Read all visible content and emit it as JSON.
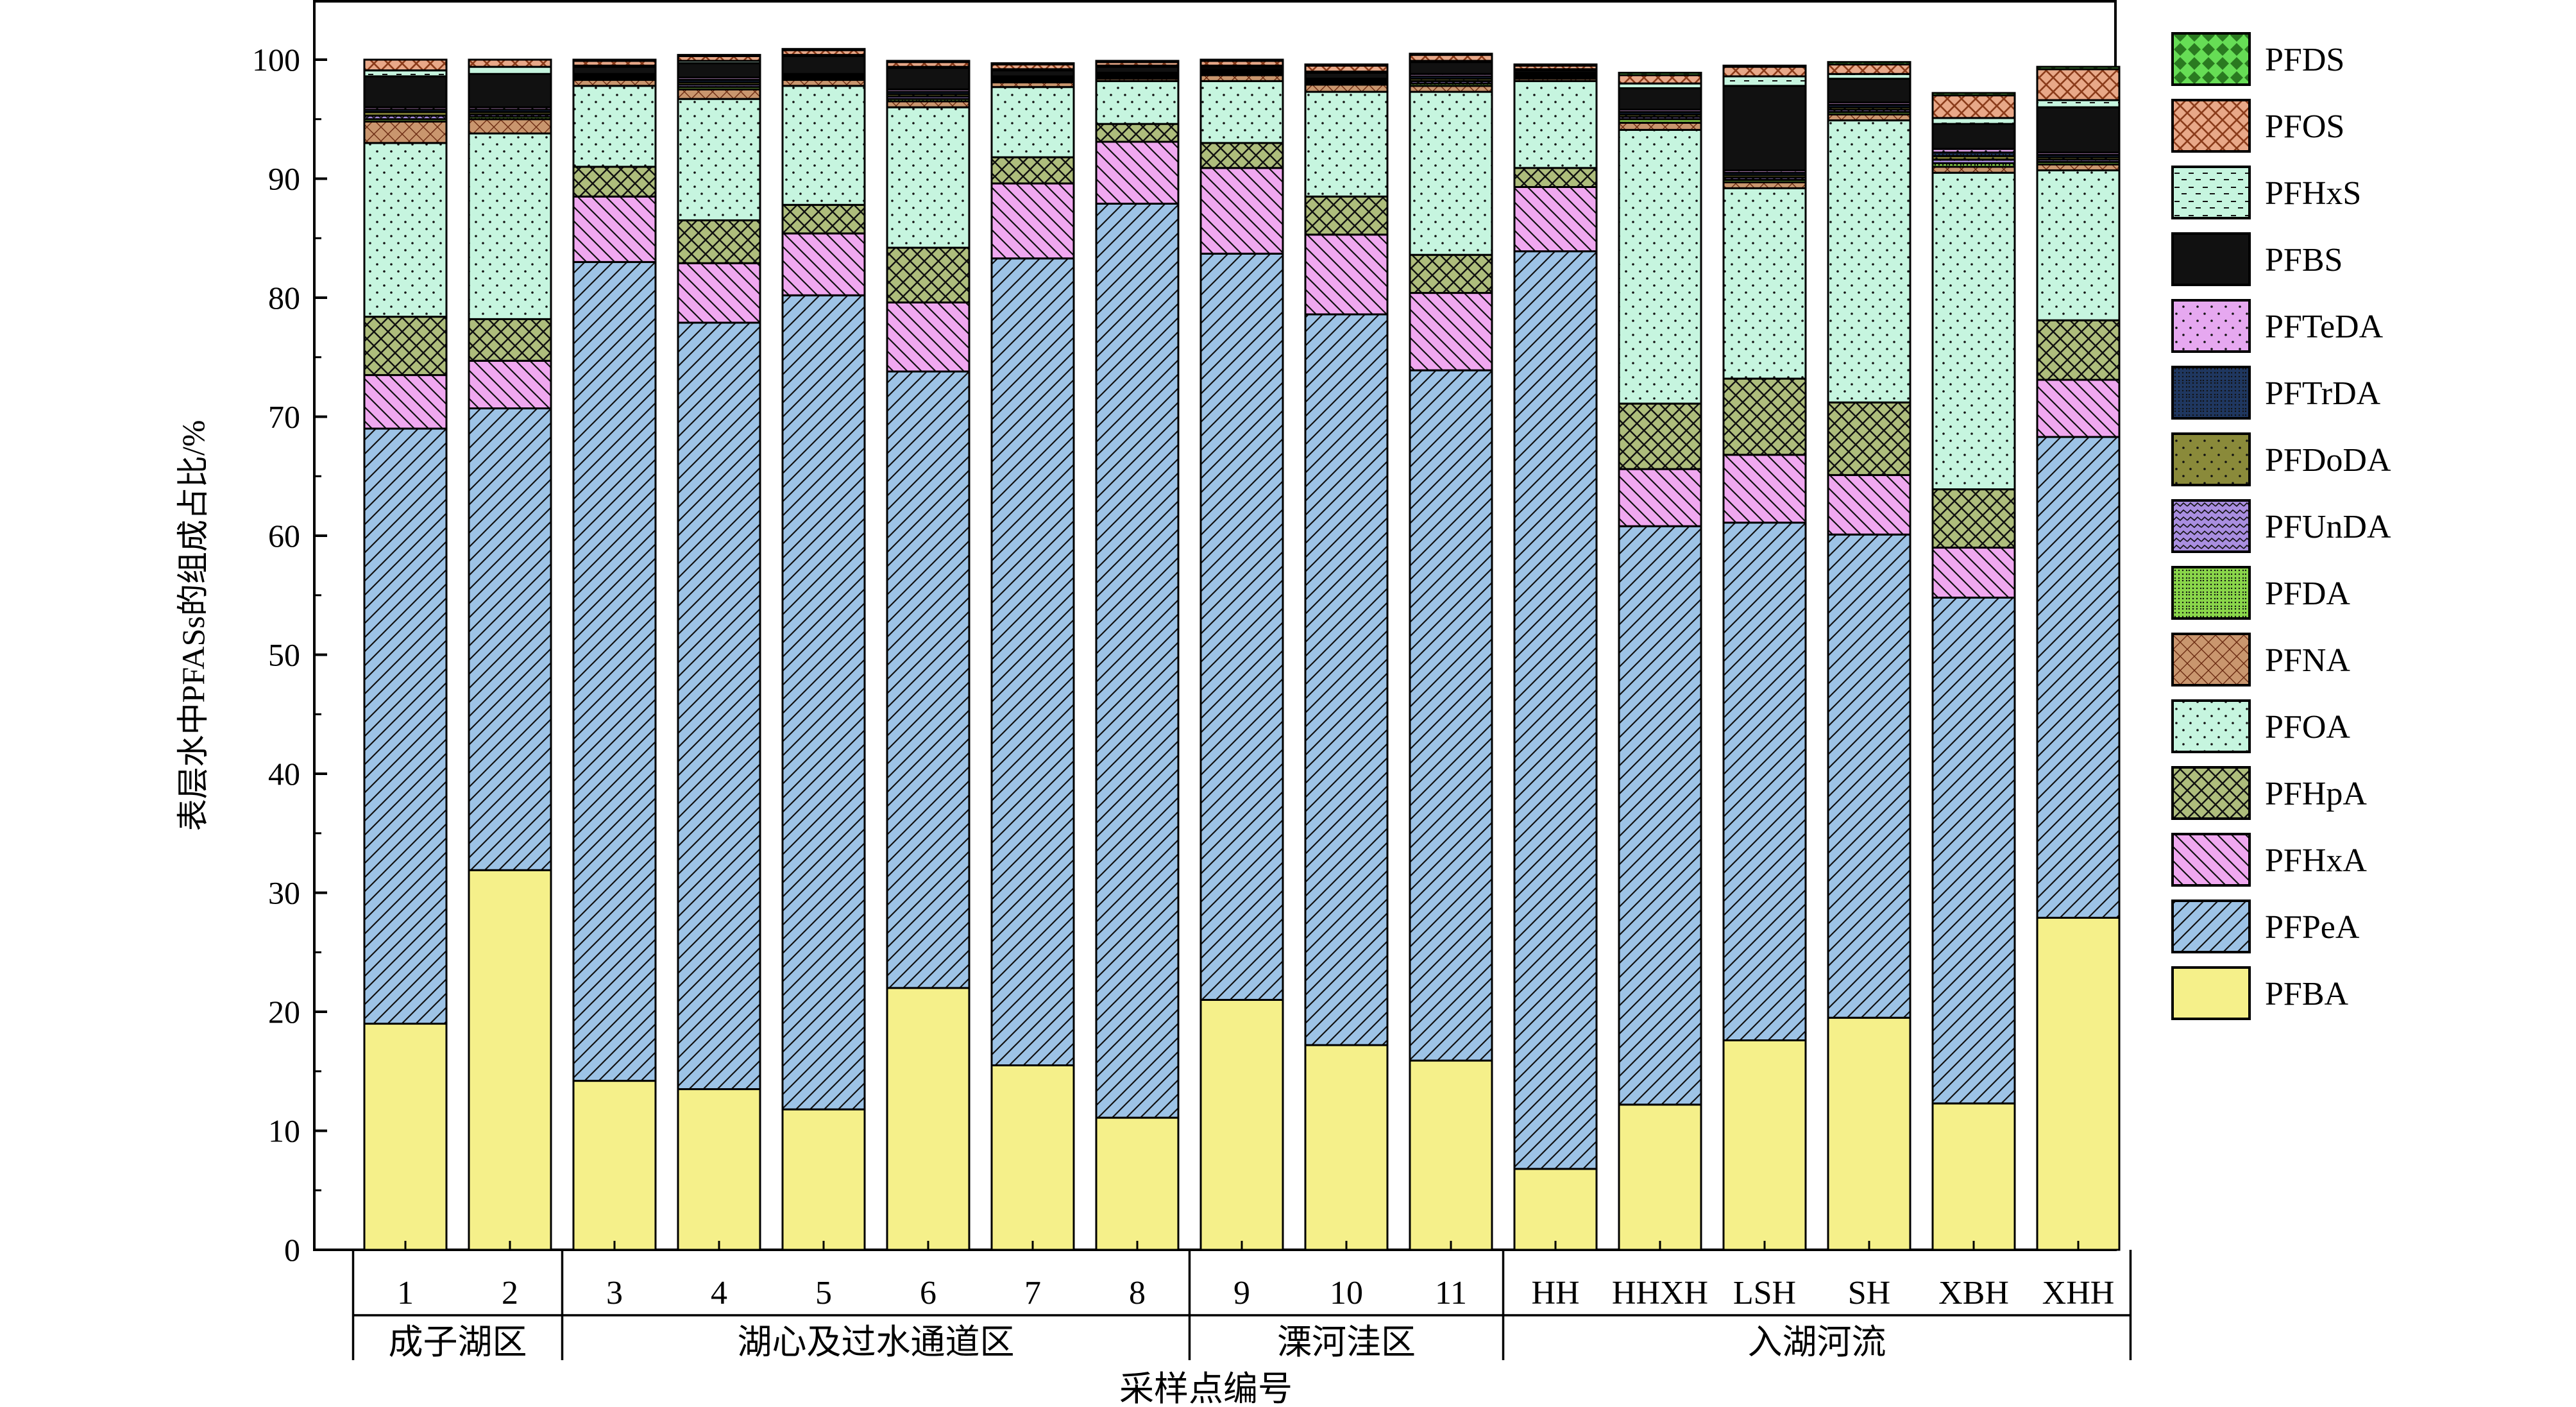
{
  "chart_data": {
    "type": "bar",
    "stacked": true,
    "ylabel": "表层水中PFASs的组成占比/%",
    "xlabel": "采样点编号",
    "ylim": [
      0,
      100
    ],
    "yticks": [
      "0",
      "10",
      "20",
      "30",
      "40",
      "50",
      "60",
      "70",
      "80",
      "90",
      "100"
    ],
    "categories": [
      "1",
      "2",
      "3",
      "4",
      "5",
      "6",
      "7",
      "8",
      "9",
      "10",
      "11",
      "HH",
      "HHXH",
      "LSH",
      "SH",
      "XBH",
      "XHH"
    ],
    "groups": [
      {
        "label": "成子湖区",
        "from": 0,
        "to": 1
      },
      {
        "label": "湖心及过水通道区",
        "from": 2,
        "to": 7
      },
      {
        "label": "溧河洼区",
        "from": 8,
        "to": 10
      },
      {
        "label": "入湖河流",
        "from": 11,
        "to": 16
      }
    ],
    "legend_position": "right",
    "series": [
      {
        "name": "PFBA",
        "color": "#f5f08a",
        "pattern": "solid",
        "values": [
          19.0,
          31.9,
          14.2,
          13.5,
          11.8,
          22.0,
          15.5,
          11.1,
          21.0,
          17.2,
          15.9,
          6.8,
          12.2,
          17.6,
          19.5,
          12.3,
          27.9
        ]
      },
      {
        "name": "PFPeA",
        "color": "#9dc3e6",
        "pattern": "diag",
        "values": [
          50.0,
          38.8,
          68.8,
          64.4,
          68.4,
          51.8,
          67.8,
          76.8,
          62.7,
          61.4,
          58.0,
          77.1,
          48.6,
          43.5,
          40.6,
          42.5,
          40.4
        ]
      },
      {
        "name": "PFHxA",
        "color": "#f0a8f0",
        "pattern": "backdiag",
        "values": [
          4.5,
          4.0,
          5.5,
          5.0,
          5.2,
          5.8,
          6.3,
          5.2,
          7.2,
          6.7,
          6.5,
          5.4,
          4.8,
          5.7,
          5.0,
          4.2,
          4.8
        ]
      },
      {
        "name": "PFHpA",
        "color": "#aebd7c",
        "pattern": "cross",
        "values": [
          4.9,
          3.5,
          2.5,
          3.6,
          2.4,
          4.6,
          2.2,
          1.5,
          2.1,
          3.2,
          3.2,
          1.6,
          5.5,
          6.4,
          6.1,
          4.9,
          5.0
        ]
      },
      {
        "name": "PFOA",
        "color": "#c6f5df",
        "pattern": "dots",
        "values": [
          14.6,
          15.6,
          6.8,
          10.2,
          10.0,
          11.8,
          5.9,
          3.6,
          5.2,
          8.8,
          13.7,
          7.3,
          23.0,
          16.0,
          23.7,
          26.6,
          12.6
        ]
      },
      {
        "name": "PFNA",
        "color": "#c9966e",
        "pattern": "hatchmix",
        "values": [
          1.8,
          1.2,
          0.5,
          0.8,
          0.5,
          0.5,
          0.4,
          0.2,
          0.5,
          0.6,
          0.5,
          0.2,
          0.6,
          0.5,
          0.5,
          0.5,
          0.5
        ]
      },
      {
        "name": "PFDA",
        "color": "#8ad64a",
        "pattern": "fine",
        "values": [
          0.2,
          0.2,
          0.1,
          0.2,
          0.1,
          0.2,
          0.1,
          0.1,
          0.1,
          0.1,
          0.2,
          0.1,
          0.3,
          0.2,
          0.2,
          0.3,
          0.2
        ]
      },
      {
        "name": "PFUnDA",
        "color": "#a98ee0",
        "pattern": "zigzag",
        "values": [
          0.3,
          0.2,
          0.1,
          0.2,
          0.1,
          0.2,
          0.1,
          0.1,
          0.1,
          0.1,
          0.2,
          0.1,
          0.2,
          0.2,
          0.2,
          0.3,
          0.2
        ]
      },
      {
        "name": "PFDoDA",
        "color": "#8a8a3a",
        "pattern": "dots",
        "values": [
          0.3,
          0.2,
          0.1,
          0.2,
          0.1,
          0.2,
          0.1,
          0.1,
          0.1,
          0.1,
          0.2,
          0.1,
          0.2,
          0.2,
          0.2,
          0.3,
          0.2
        ]
      },
      {
        "name": "PFTrDA",
        "color": "#1f3760",
        "pattern": "fine",
        "values": [
          0.2,
          0.2,
          0.1,
          0.2,
          0.1,
          0.2,
          0.1,
          0.1,
          0.1,
          0.1,
          0.2,
          0.1,
          0.2,
          0.2,
          0.2,
          0.3,
          0.2
        ]
      },
      {
        "name": "PFTeDA",
        "color": "#e6a8f0",
        "pattern": "dots",
        "values": [
          0.2,
          0.2,
          0.1,
          0.2,
          0.1,
          0.2,
          0.1,
          0.1,
          0.1,
          0.1,
          0.2,
          0.1,
          0.2,
          0.2,
          0.2,
          0.3,
          0.2
        ]
      },
      {
        "name": "PFBS",
        "color": "#111111",
        "pattern": "dots",
        "values": [
          2.6,
          2.8,
          0.6,
          1.2,
          1.5,
          1.8,
          0.5,
          0.5,
          0.2,
          0.5,
          1.0,
          0.2,
          1.8,
          7.1,
          2.0,
          2.1,
          3.8
        ]
      },
      {
        "name": "PFHxS",
        "color": "#c6f5df",
        "pattern": "dash",
        "values": [
          0.5,
          0.6,
          0.1,
          0.2,
          0.1,
          0.1,
          0.1,
          0.1,
          0.1,
          0.1,
          0.1,
          0.1,
          0.4,
          0.8,
          0.4,
          0.5,
          0.6
        ]
      },
      {
        "name": "PFOS",
        "color": "#e8a888",
        "pattern": "crosshatch",
        "values": [
          0.9,
          0.6,
          0.4,
          0.4,
          0.4,
          0.4,
          0.4,
          0.3,
          0.4,
          0.5,
          0.5,
          0.3,
          0.7,
          0.8,
          0.8,
          1.9,
          2.6
        ]
      },
      {
        "name": "PFDS",
        "color": "#66dd55",
        "pattern": "diamond",
        "values": [
          0.0,
          0.0,
          0.1,
          0.1,
          0.1,
          0.1,
          0.1,
          0.1,
          0.1,
          0.1,
          0.1,
          0.1,
          0.2,
          0.1,
          0.2,
          0.2,
          0.2
        ]
      }
    ],
    "legend_order": [
      "PFDS",
      "PFOS",
      "PFHxS",
      "PFBS",
      "PFTeDA",
      "PFTrDA",
      "PFDoDA",
      "PFUnDA",
      "PFDA",
      "PFNA",
      "PFOA",
      "PFHpA",
      "PFHxA",
      "PFPeA",
      "PFBA"
    ]
  }
}
